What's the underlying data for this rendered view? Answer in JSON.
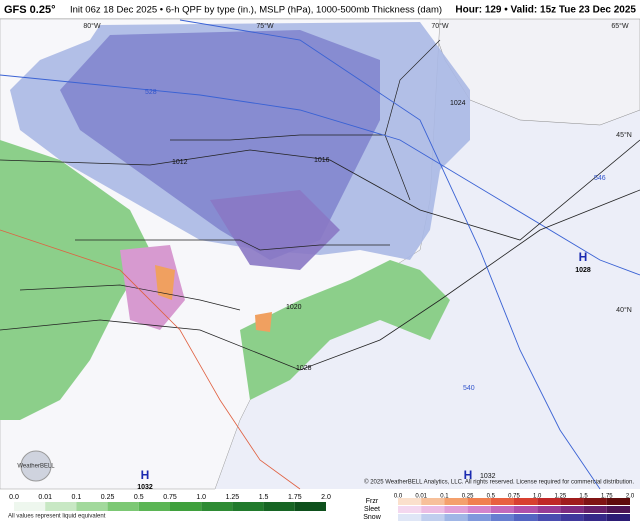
{
  "header": {
    "model": "GFS 0.25°",
    "init": "Init 06z 18 Dec 2025 • 6-h QPF by type (in.), MSLP (hPa), 1000-500mb Thickness (dam)",
    "valid": "Hour: 129 • Valid: 15z Tue 23 Dec 2025"
  },
  "map": {
    "longitudes": [
      "80°W",
      "75°W",
      "70°W",
      "65°W"
    ],
    "latitudes": [
      "45°N",
      "40°N"
    ],
    "highs": [
      {
        "symbol": "H",
        "pressure": "1028"
      },
      {
        "symbol": "H",
        "pressure": "1032"
      },
      {
        "symbol": "H"
      }
    ],
    "contours": [
      "528",
      "1012",
      "1016",
      "1024",
      "1020",
      "1028",
      "540",
      "1032",
      "546"
    ],
    "logo": "WeatherBELL"
  },
  "footer": {
    "copyright": "© 2025 WeatherBELL Analytics, LLC. All rights reserved. License required for commercial distribution.",
    "rain_scale": [
      "0.0",
      "0.01",
      "0.1",
      "0.25",
      "0.5",
      "0.75",
      "1.0",
      "1.25",
      "1.5",
      "1.75",
      "2.0"
    ],
    "note": "All values represent liquid equivalent",
    "ptypes": [
      "Frzr",
      "Sleet",
      "Snow"
    ],
    "mixed_scale": [
      "0.0",
      "0.01",
      "0.1",
      "0.25",
      "0.5",
      "0.75",
      "1.0",
      "1.25",
      "1.5",
      "1.75",
      "2.0"
    ]
  }
}
